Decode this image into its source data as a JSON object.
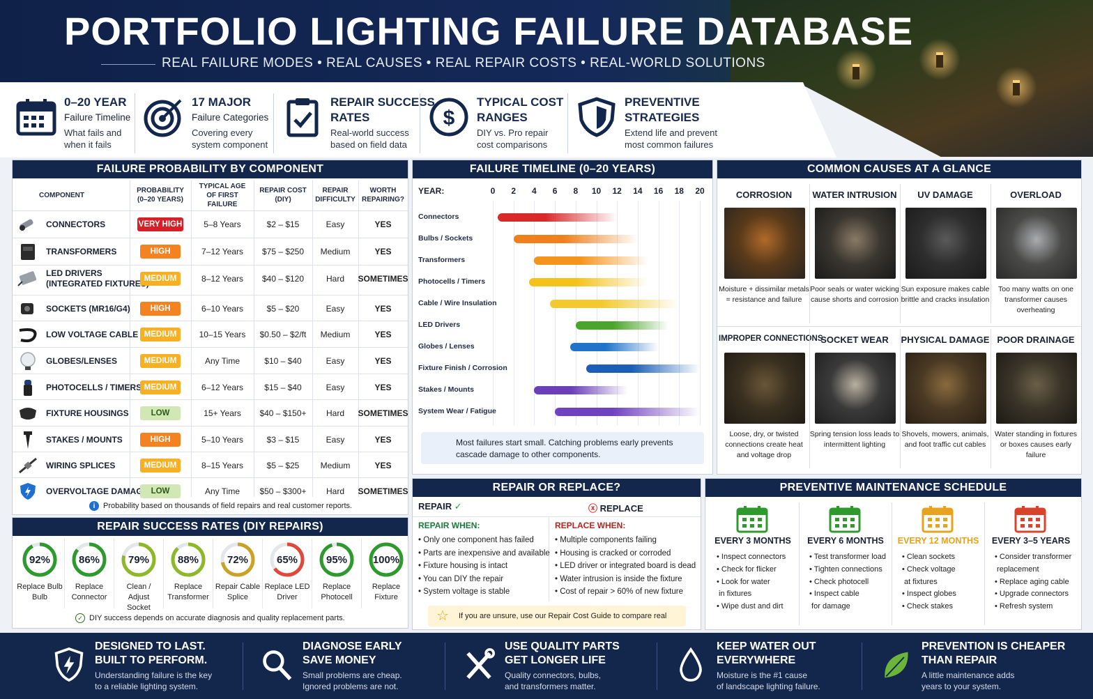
{
  "header": {
    "title": "PORTFOLIO LIGHTING FAILURE DATABASE",
    "subtitle": "REAL FAILURE MODES • REAL CAUSES • REAL REPAIR COSTS • REAL-WORLD SOLUTIONS"
  },
  "features": [
    {
      "icon": "calendar-icon",
      "title1": "0–20 YEAR",
      "title2": "",
      "sub1": "Failure Timeline",
      "sub2": "What fails and",
      "sub3": "when it fails"
    },
    {
      "icon": "target-icon",
      "title1": "17 MAJOR",
      "title2": "",
      "sub1": "Failure Categories",
      "sub2": "Covering every",
      "sub3": "system component"
    },
    {
      "icon": "clipboard-check-icon",
      "title1": "REPAIR SUCCESS",
      "title2": "RATES",
      "sub1": "",
      "sub2": "Real-world success",
      "sub3": "based on field data"
    },
    {
      "icon": "dollar-icon",
      "title1": "TYPICAL COST",
      "title2": "RANGES",
      "sub1": "",
      "sub2": "DIY vs. Pro repair",
      "sub3": "cost comparisons"
    },
    {
      "icon": "shield-icon",
      "title1": "PREVENTIVE",
      "title2": "STRATEGIES",
      "sub1": "",
      "sub2": "Extend life and prevent",
      "sub3": "most common failures"
    }
  ],
  "table": {
    "title": "FAILURE PROBABILITY BY COMPONENT",
    "headers": [
      "COMPONENT",
      "PROBABILITY\n(0–20 YEARS)",
      "TYPICAL AGE\nOF FIRST FAILURE",
      "REPAIR COST\n(DIY)",
      "REPAIR\nDIFFICULTY",
      "WORTH\nREPAIRING?"
    ],
    "rows": [
      {
        "name": "CONNECTORS",
        "prob": "VERY HIGH",
        "cls": "b-vh",
        "age": "5–8 Years",
        "cost": "$2 – $15",
        "diff": "Easy",
        "worth": "YES",
        "icon": "connector-icon"
      },
      {
        "name": "TRANSFORMERS",
        "prob": "HIGH",
        "cls": "b-h",
        "age": "7–12 Years",
        "cost": "$75 – $250",
        "diff": "Medium",
        "worth": "YES",
        "icon": "transformer-icon"
      },
      {
        "name": "LED DRIVERS\n(INTEGRATED FIXTURES)",
        "prob": "MEDIUM",
        "cls": "b-m",
        "age": "8–12 Years",
        "cost": "$40 – $120",
        "diff": "Hard",
        "worth": "SOMETIMES",
        "icon": "led-driver-icon"
      },
      {
        "name": "SOCKETS (MR16/G4)",
        "prob": "HIGH",
        "cls": "b-h",
        "age": "6–10 Years",
        "cost": "$5 – $20",
        "diff": "Easy",
        "worth": "YES",
        "icon": "socket-icon"
      },
      {
        "name": "LOW VOLTAGE CABLE",
        "prob": "MEDIUM",
        "cls": "b-m",
        "age": "10–15 Years",
        "cost": "$0.50 – $2/ft",
        "diff": "Medium",
        "worth": "YES",
        "icon": "cable-icon"
      },
      {
        "name": "GLOBES/LENSES",
        "prob": "MEDIUM",
        "cls": "b-m",
        "age": "Any Time",
        "cost": "$10 – $40",
        "diff": "Easy",
        "worth": "YES",
        "icon": "globe-icon"
      },
      {
        "name": "PHOTOCELLS / TIMERS",
        "prob": "MEDIUM",
        "cls": "b-m",
        "age": "6–12 Years",
        "cost": "$15 – $40",
        "diff": "Easy",
        "worth": "YES",
        "icon": "photocell-icon"
      },
      {
        "name": "FIXTURE HOUSINGS",
        "prob": "LOW",
        "cls": "b-l",
        "age": "15+ Years",
        "cost": "$40 – $150+",
        "diff": "Hard",
        "worth": "SOMETIMES",
        "icon": "housing-icon"
      },
      {
        "name": "STAKES / MOUNTS",
        "prob": "HIGH",
        "cls": "b-h",
        "age": "5–10 Years",
        "cost": "$3 – $15",
        "diff": "Easy",
        "worth": "YES",
        "icon": "stake-icon"
      },
      {
        "name": "WIRING SPLICES",
        "prob": "MEDIUM",
        "cls": "b-m",
        "age": "8–15 Years",
        "cost": "$5 – $25",
        "diff": "Medium",
        "worth": "YES",
        "icon": "splice-icon"
      },
      {
        "name": "OVERVOLTAGE DAMAGE",
        "prob": "LOW",
        "cls": "b-l",
        "age": "Any Time",
        "cost": "$50 – $300+",
        "diff": "Hard",
        "worth": "SOMETIMES",
        "icon": "lightning-shield-icon"
      }
    ],
    "note": "Probability based on thousands of field repairs and real customer reports."
  },
  "success": {
    "title": "REPAIR SUCCESS RATES (DIY REPAIRS)",
    "items": [
      {
        "pct": 92,
        "label": "92%",
        "l1": "Replace Bulb",
        "l2": "Bulb",
        "color": "#2e9a2e"
      },
      {
        "pct": 86,
        "label": "86%",
        "l1": "Replace",
        "l2": "Connector",
        "color": "#2e9a2e"
      },
      {
        "pct": 79,
        "label": "79%",
        "l1": "Clean / Adjust",
        "l2": "Socket",
        "color": "#8db82a"
      },
      {
        "pct": 88,
        "label": "88%",
        "l1": "Replace",
        "l2": "Transformer",
        "color": "#8db82a"
      },
      {
        "pct": 72,
        "label": "72%",
        "l1": "Repair Cable",
        "l2": "Splice",
        "color": "#c9a227"
      },
      {
        "pct": 65,
        "label": "65%",
        "l1": "Replace LED",
        "l2": "Driver",
        "color": "#e0483a"
      },
      {
        "pct": 95,
        "label": "95%",
        "l1": "Replace",
        "l2": "Photocell",
        "color": "#2e9a2e"
      },
      {
        "pct": 100,
        "label": "100%",
        "l1": "Replace",
        "l2": "Fixture",
        "color": "#2e9a2e"
      }
    ],
    "note": "DIY success depends on accurate diagnosis and quality replacement parts."
  },
  "timeline": {
    "title": "FAILURE TIMELINE (0–20 YEARS)",
    "year_label": "YEAR:",
    "ticks": [
      "0",
      "2",
      "4",
      "6",
      "8",
      "10",
      "12",
      "14",
      "16",
      "18",
      "20"
    ],
    "rows": [
      {
        "name": "Connectors",
        "start": 0.5,
        "end": 12,
        "color": "#d92a2a"
      },
      {
        "name": "Bulbs / Sockets",
        "start": 2,
        "end": 14,
        "color": "#f0801c"
      },
      {
        "name": "Transformers",
        "start": 4,
        "end": 15,
        "color": "#f5941c"
      },
      {
        "name": "Photocells / Timers",
        "start": 3.5,
        "end": 15,
        "color": "#f5c21c"
      },
      {
        "name": "Cable / Wire Insulation",
        "start": 5.5,
        "end": 18,
        "color": "#f2c930"
      },
      {
        "name": "LED Drivers",
        "start": 8,
        "end": 17,
        "color": "#4aa52b"
      },
      {
        "name": "Globes / Lenses",
        "start": 7.5,
        "end": 16,
        "color": "#1f74c9"
      },
      {
        "name": "Fixture Finish / Corrosion",
        "start": 9,
        "end": 20,
        "color": "#1a5eb8"
      },
      {
        "name": "Stakes / Mounts",
        "start": 4,
        "end": 13,
        "color": "#6a3fb8"
      },
      {
        "name": "System Wear / Fatigue",
        "start": 6,
        "end": 20,
        "color": "#6f42c1"
      }
    ],
    "tip": "Most failures start small. Catching problems early prevents cascade damage to other components."
  },
  "causes": {
    "title": "COMMON CAUSES AT A GLANCE",
    "items": [
      {
        "title": "CORROSION",
        "desc": "Moisture + dissimilar metals = resistance and failure",
        "icon": "corrosion-photo"
      },
      {
        "title": "WATER INTRUSION",
        "desc": "Poor seals or water wicking cause shorts and corrosion",
        "icon": "water-intrusion-photo"
      },
      {
        "title": "UV DAMAGE",
        "desc": "Sun exposure makes cable brittle and cracks insulation",
        "icon": "uv-damage-photo"
      },
      {
        "title": "OVERLOAD",
        "desc": "Too many watts on one transformer causes overheating",
        "icon": "overload-photo"
      },
      {
        "title": "IMPROPER CONNECTIONS",
        "desc": "Loose, dry, or twisted connections create heat and voltage drop",
        "icon": "connection-photo"
      },
      {
        "title": "SOCKET WEAR",
        "desc": "Spring tension loss leads to intermittent lighting",
        "icon": "socket-wear-photo"
      },
      {
        "title": "PHYSICAL DAMAGE",
        "desc": "Shovels, mowers, animals, and foot traffic cut cables",
        "icon": "physical-damage-photo"
      },
      {
        "title": "POOR DRAINAGE",
        "desc": "Water standing in fixtures or boxes causes early failure",
        "icon": "drainage-photo"
      }
    ]
  },
  "repair_replace": {
    "title": "REPAIR OR REPLACE?",
    "repair": "REPAIR",
    "replace": "REPLACE",
    "repair_when": "REPAIR WHEN:",
    "replace_when": "REPLACE WHEN:",
    "repair_items": [
      "Only one component has failed",
      "Parts are inexpensive and available",
      "Fixture housing is intact",
      "You can DIY the repair",
      "System voltage is stable"
    ],
    "replace_items": [
      "Multiple components failing",
      "Housing is cracked or corroded",
      "LED driver or integrated board is dead",
      "Water intrusion is inside the fixture",
      "Cost of repair > 60% of new fixture"
    ],
    "tip": "If you are unsure, use our Repair Cost Guide to compare real costs."
  },
  "pm": {
    "title": "PREVENTIVE MAINTENANCE SCHEDULE",
    "cols": [
      {
        "title": "EVERY 3 MONTHS",
        "color": "#2e9a2e",
        "items": [
          "Inspect connectors",
          "Check for flicker",
          "Look for water\n in fixtures",
          "Wipe dust and dirt"
        ]
      },
      {
        "title": "EVERY 6 MONTHS",
        "color": "#2e9a2e",
        "items": [
          "Test transformer load",
          "Tighten connections",
          "Check photocell",
          "Inspect cable\n for damage"
        ]
      },
      {
        "title": "EVERY 12 MONTHS",
        "color": "#e8a21c",
        "items": [
          "Clean sockets",
          "Check voltage\n at fixtures",
          "Inspect globes",
          "Check stakes"
        ]
      },
      {
        "title": "EVERY 3–5 YEARS",
        "color": "#d9432b",
        "items": [
          "Consider transformer\n replacement",
          "Replace aging cable",
          "Upgrade connectors",
          "Refresh system"
        ]
      }
    ]
  },
  "footer": [
    {
      "t1": "DESIGNED TO LAST.",
      "t2": "BUILT TO PERFORM.",
      "s1": "Understanding failure is the key",
      "s2": "to a reliable lighting system.",
      "icon": "bolt-shield-icon"
    },
    {
      "t1": "DIAGNOSE EARLY",
      "t2": "SAVE MONEY",
      "s1": "Small problems are cheap.",
      "s2": "Ignored problems are not.",
      "icon": "magnifier-icon"
    },
    {
      "t1": "USE QUALITY PARTS",
      "t2": "GET LONGER LIFE",
      "s1": "Quality connectors, bulbs,",
      "s2": "and transformers matter.",
      "icon": "tools-icon"
    },
    {
      "t1": "KEEP WATER OUT",
      "t2": "EVERYWHERE",
      "s1": "Moisture is the #1 cause",
      "s2": "of landscape lighting failure.",
      "icon": "water-drop-icon"
    },
    {
      "t1": "PREVENTION IS CHEAPER",
      "t2": "THAN REPAIR",
      "s1": "A little maintenance adds",
      "s2": "years to your system.",
      "icon": "leaf-icon"
    }
  ]
}
